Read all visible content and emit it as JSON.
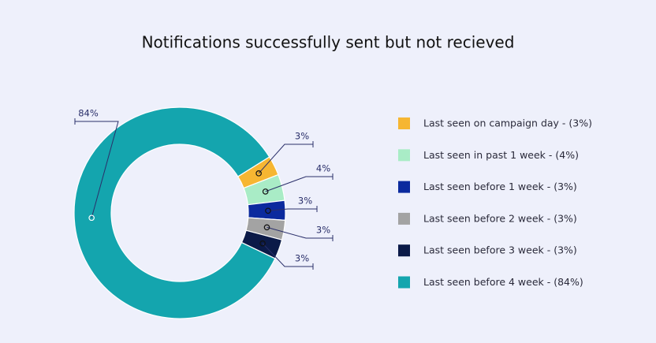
{
  "chart_data": {
    "type": "donut",
    "title": "Notifications successfully sent but not recieved",
    "categories": [
      "Last seen on campaign day - (3%)",
      "Last seen in past 1 week - (4%)",
      "Last seen before 1 week - (3%)",
      "Last seen before 2 week - (3%)",
      "Last seen before 3 week - (3%)",
      "Last seen before 4 week - (84%)"
    ],
    "values": [
      3,
      4,
      3,
      3,
      3,
      84
    ],
    "value_labels": [
      "3%",
      "4%",
      "3%",
      "3%",
      "3%",
      "84%"
    ],
    "colors": [
      "#f6b632",
      "#a9ecc6",
      "#0b2a9e",
      "#a3a3a3",
      "#0b1a48",
      "#14a5ae"
    ]
  }
}
